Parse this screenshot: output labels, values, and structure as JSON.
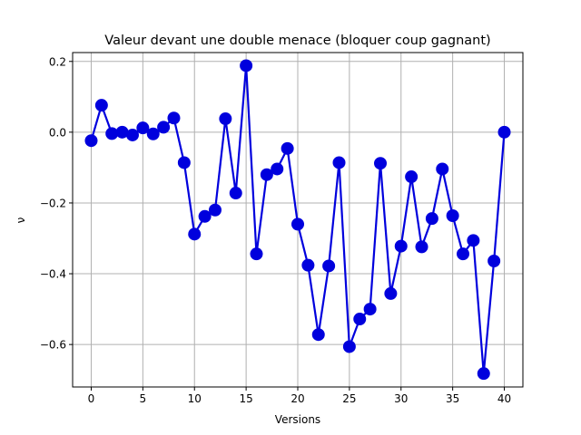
{
  "chart_data": {
    "type": "line",
    "title": "Valeur devant une double menace (bloquer coup gagnant)",
    "xlabel": "Versions",
    "ylabel": "ν",
    "xlim": [
      -1.8,
      41.8
    ],
    "ylim": [
      -0.72,
      0.225
    ],
    "xticks": [
      0,
      5,
      10,
      15,
      20,
      25,
      30,
      35,
      40
    ],
    "yticks": [
      -0.6,
      -0.4,
      -0.2,
      0.0,
      0.2
    ],
    "ytick_labels": [
      "−0.6",
      "−0.4",
      "−0.2",
      "0.0",
      "0.2"
    ],
    "grid": true,
    "line_color": "#0000dd",
    "series": [
      {
        "x": [
          0,
          1,
          2,
          3,
          4,
          5,
          6,
          7,
          8,
          9,
          10,
          11,
          12,
          13,
          14,
          15,
          16,
          17,
          18,
          19,
          20,
          21,
          22,
          23,
          24,
          25,
          26,
          27,
          28,
          29,
          30,
          31,
          32,
          33,
          34,
          35,
          36,
          37,
          38,
          39,
          40
        ],
        "values": [
          -0.024,
          0.076,
          -0.004,
          0.0,
          -0.008,
          0.012,
          -0.005,
          0.014,
          0.04,
          -0.086,
          -0.288,
          -0.238,
          -0.22,
          0.038,
          -0.172,
          0.188,
          -0.344,
          -0.12,
          -0.104,
          -0.046,
          -0.26,
          -0.376,
          -0.572,
          -0.378,
          -0.086,
          -0.606,
          -0.528,
          -0.5,
          -0.088,
          -0.456,
          -0.322,
          -0.126,
          -0.324,
          -0.244,
          -0.104,
          -0.236,
          -0.344,
          -0.306,
          -0.682,
          -0.364,
          0.0
        ]
      }
    ]
  }
}
